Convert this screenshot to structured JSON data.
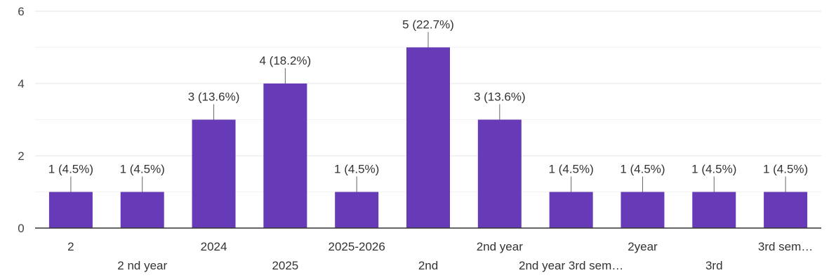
{
  "chart_data": {
    "type": "bar",
    "title": "",
    "xlabel": "",
    "ylabel": "",
    "ylim": [
      0,
      6
    ],
    "yticks": [
      "0",
      "2",
      "4",
      "6"
    ],
    "grid": true,
    "legend": "none",
    "bar_color": "#673ab7",
    "categories": [
      "2",
      "2 nd year",
      "2024",
      "2025",
      "2025-2026",
      "2nd",
      "2nd year",
      "2nd year 3rd sem…",
      "2year",
      "3rd",
      "3rd sem…"
    ],
    "values": [
      1,
      1,
      3,
      4,
      1,
      5,
      3,
      1,
      1,
      1,
      1
    ],
    "data_labels": [
      "1 (4.5%)",
      "1 (4.5%)",
      "3 (13.6%)",
      "4 (18.2%)",
      "1 (4.5%)",
      "5 (22.7%)",
      "3 (13.6%)",
      "1 (4.5%)",
      "1 (4.5%)",
      "1 (4.5%)",
      "1 (4.5%)"
    ]
  }
}
